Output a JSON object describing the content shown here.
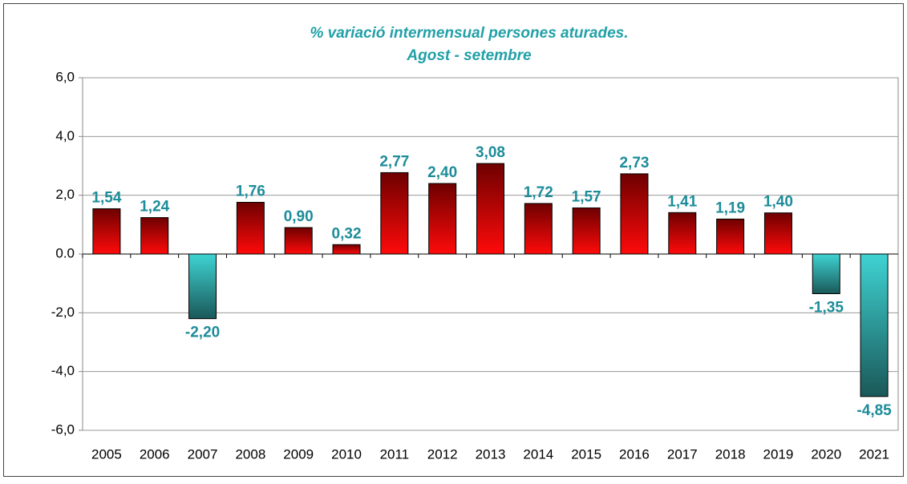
{
  "chart_data": {
    "type": "bar",
    "title": "% variació intermensual persones aturades.",
    "subtitle": "Agost - setembre",
    "categories": [
      "2005",
      "2006",
      "2007",
      "2008",
      "2009",
      "2010",
      "2011",
      "2012",
      "2013",
      "2014",
      "2015",
      "2016",
      "2017",
      "2018",
      "2019",
      "2020",
      "2021"
    ],
    "values": [
      1.54,
      1.24,
      -2.2,
      1.76,
      0.9,
      0.32,
      2.77,
      2.4,
      3.08,
      1.72,
      1.57,
      2.73,
      1.41,
      1.19,
      1.4,
      -1.35,
      -4.85
    ],
    "value_labels": [
      "1,54",
      "1,24",
      "-2,20",
      "1,76",
      "0,90",
      "0,32",
      "2,77",
      "2,40",
      "3,08",
      "1,72",
      "1,57",
      "2,73",
      "1,41",
      "1,19",
      "1,40",
      "-1,35",
      "-4,85"
    ],
    "ylim": [
      -6,
      6
    ],
    "yticks": [
      {
        "value": -6,
        "label": "-6,0"
      },
      {
        "value": -4,
        "label": "-4,0"
      },
      {
        "value": -2,
        "label": "-2,0"
      },
      {
        "value": 0,
        "label": "0.0"
      },
      {
        "value": 2,
        "label": "2,0"
      },
      {
        "value": 4,
        "label": "4,0"
      },
      {
        "value": 6,
        "label": "6,0"
      }
    ],
    "grid": true,
    "colors": {
      "positive": [
        "#6e0000",
        "#ff0a0a"
      ],
      "negative": [
        "#3fd3d3",
        "#1a5858"
      ],
      "labels": "#1c8c9a",
      "title": "#22a0a8"
    }
  }
}
